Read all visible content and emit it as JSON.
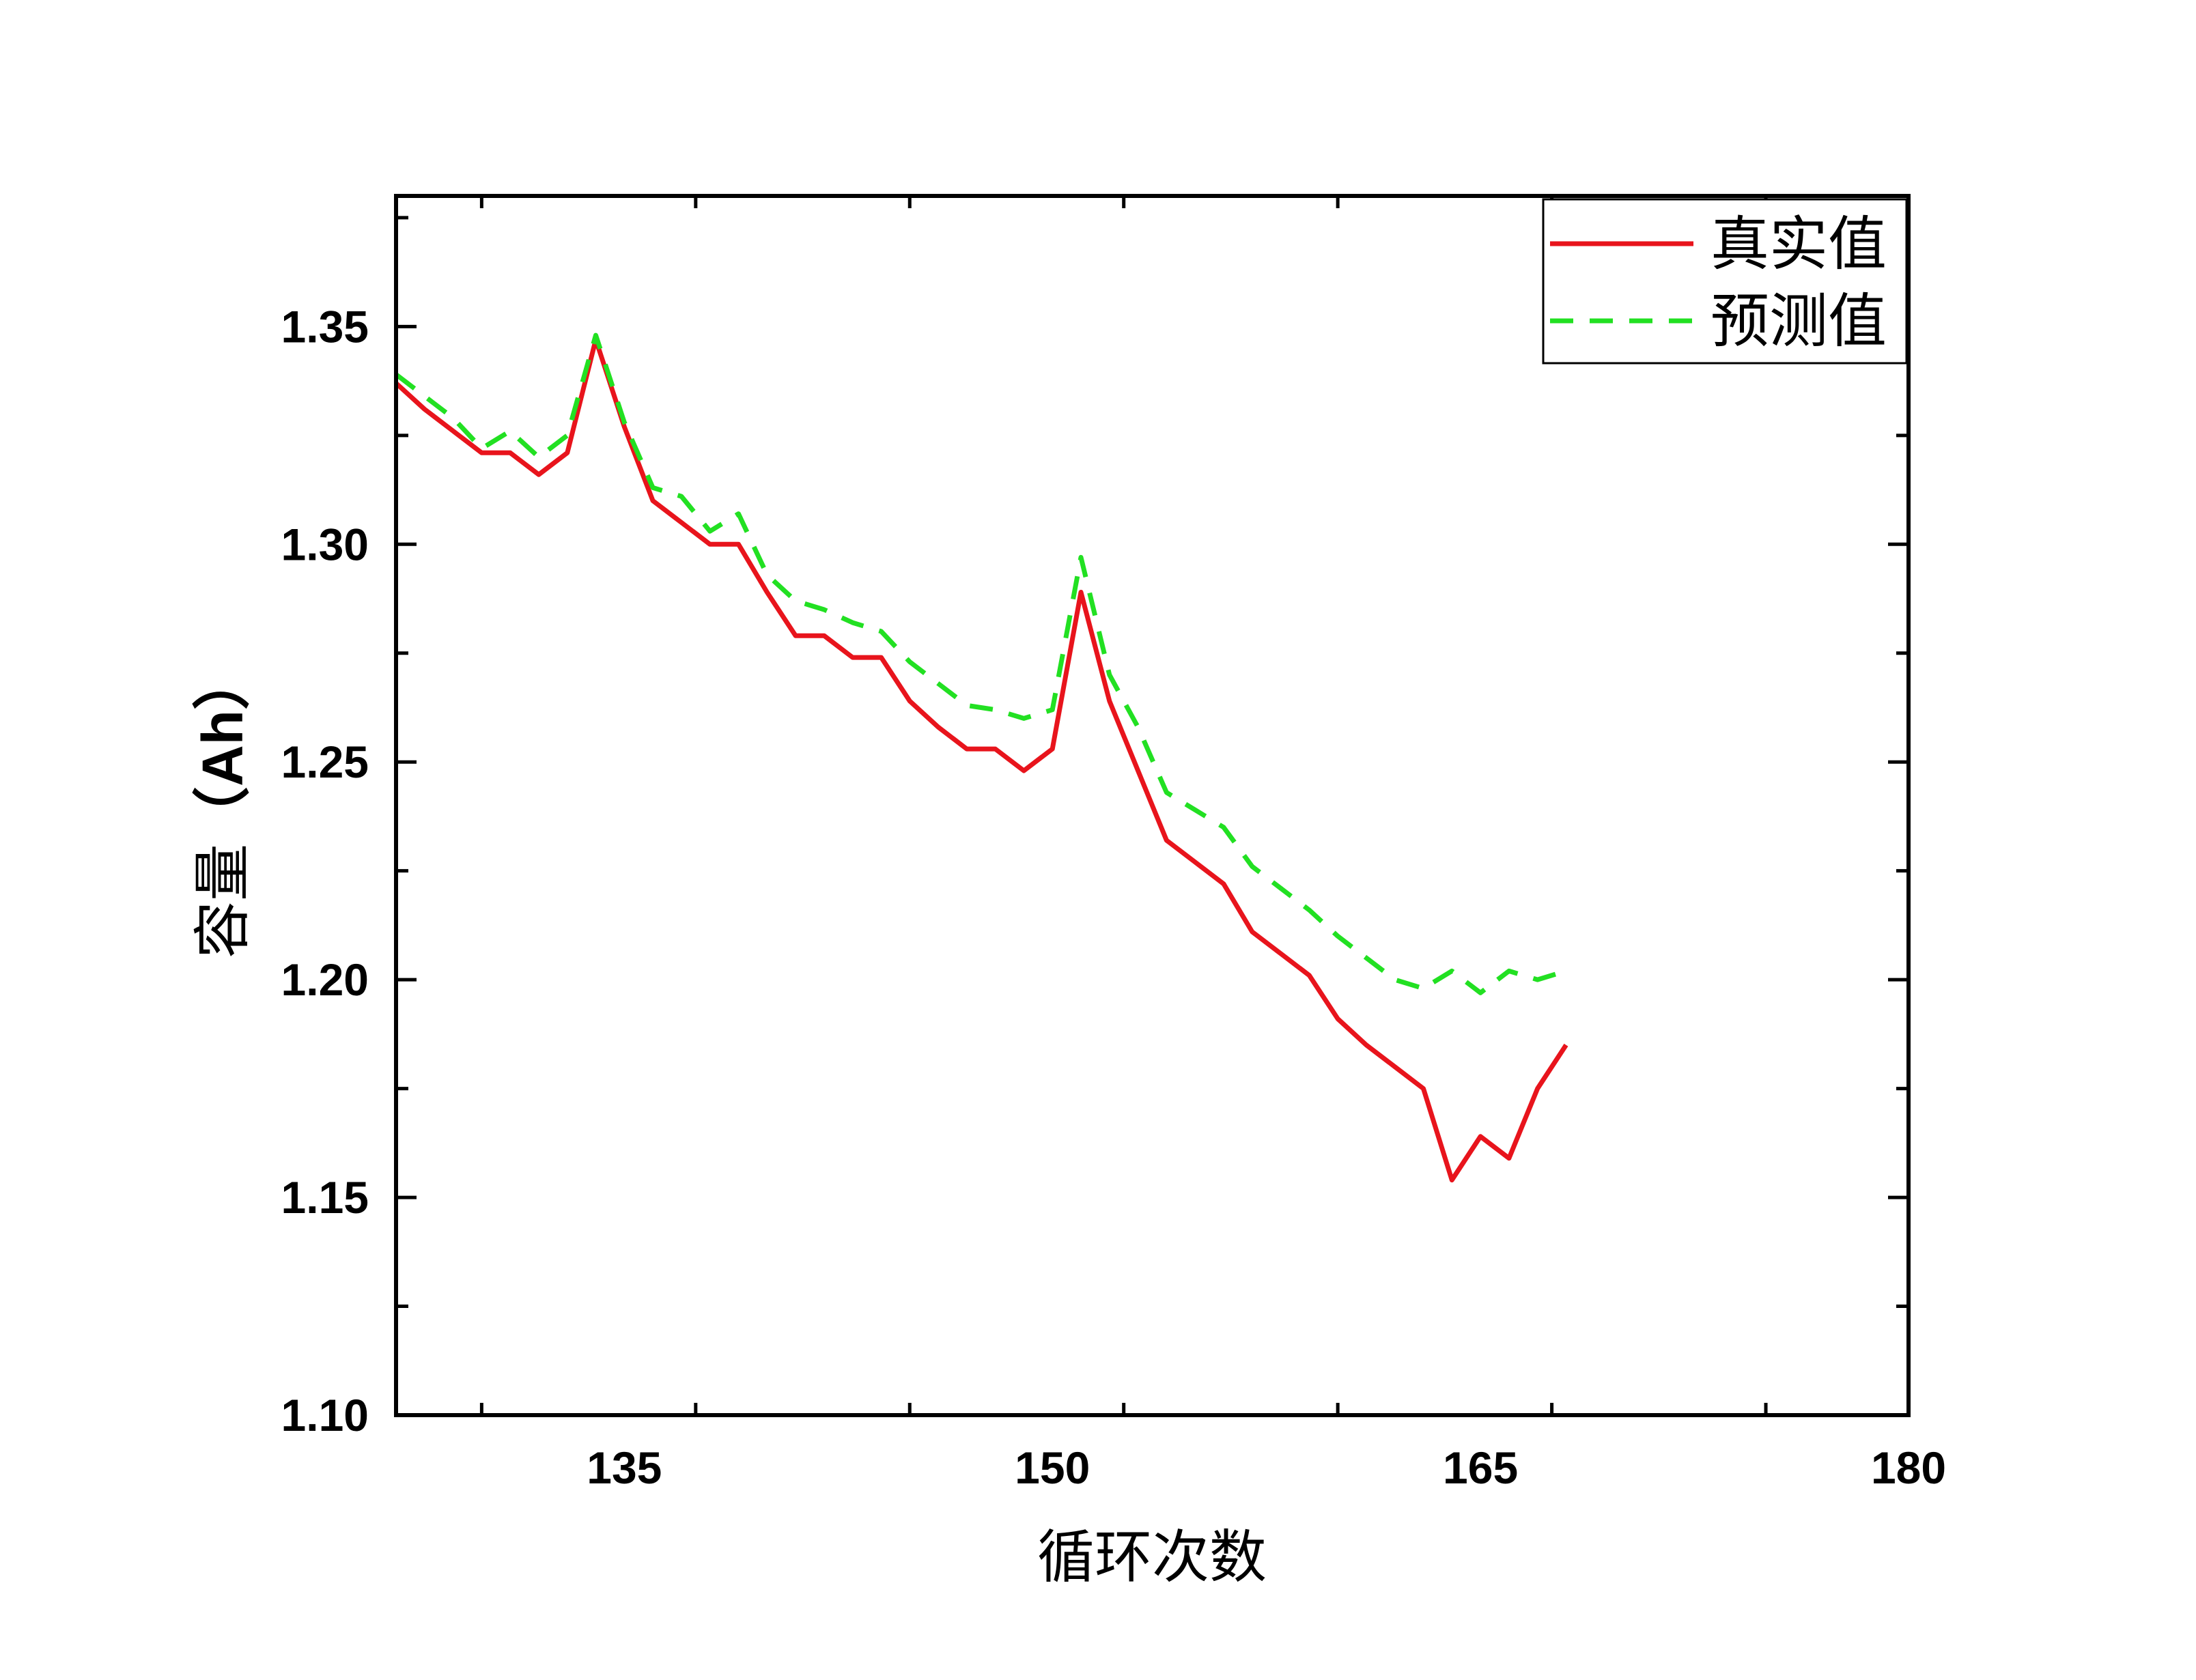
{
  "chart_data": {
    "type": "line",
    "xlabel": "循环次数",
    "ylabel_cjk": "容量",
    "ylabel_unit": "（Ah）",
    "xlim": [
      127,
      180
    ],
    "ylim": [
      1.1,
      1.38
    ],
    "xticks": [
      135,
      150,
      165,
      180
    ],
    "xtick_labels": [
      "135",
      "150",
      "165",
      "180"
    ],
    "yticks": [
      1.1,
      1.15,
      1.2,
      1.25,
      1.3,
      1.35
    ],
    "ytick_labels": [
      "1.10",
      "1.15",
      "1.20",
      "1.25",
      "1.30",
      "1.35"
    ],
    "legend_position": "top-right",
    "grid": false,
    "series": [
      {
        "name": "真实值",
        "color": "#e8141c",
        "style": "solid",
        "x": [
          127,
          128,
          129,
          130,
          131,
          132,
          133,
          134,
          135,
          136,
          137,
          138,
          139,
          140,
          141,
          142,
          143,
          144,
          145,
          146,
          147,
          148,
          149,
          150,
          151,
          152,
          153,
          154,
          155,
          156,
          157,
          158,
          159,
          160,
          161,
          162,
          163,
          164,
          165,
          166,
          167,
          168
        ],
        "y": [
          1.337,
          1.331,
          1.326,
          1.321,
          1.321,
          1.316,
          1.321,
          1.347,
          1.327,
          1.31,
          1.305,
          1.3,
          1.3,
          1.289,
          1.279,
          1.279,
          1.274,
          1.274,
          1.264,
          1.258,
          1.253,
          1.253,
          1.248,
          1.253,
          1.289,
          1.264,
          1.248,
          1.232,
          1.227,
          1.222,
          1.211,
          1.206,
          1.201,
          1.191,
          1.185,
          1.18,
          1.175,
          1.154,
          1.164,
          1.159,
          1.175,
          1.185
        ]
      },
      {
        "name": "预测值",
        "color": "#22e022",
        "style": "dashed",
        "x": [
          127,
          128,
          129,
          130,
          131,
          132,
          133,
          134,
          135,
          136,
          137,
          138,
          139,
          140,
          141,
          142,
          143,
          144,
          145,
          146,
          147,
          148,
          149,
          150,
          151,
          152,
          153,
          154,
          155,
          156,
          157,
          158,
          159,
          160,
          161,
          162,
          163,
          164,
          165,
          166,
          167,
          168
        ],
        "y": [
          1.339,
          1.334,
          1.329,
          1.322,
          1.326,
          1.32,
          1.325,
          1.348,
          1.328,
          1.313,
          1.311,
          1.303,
          1.307,
          1.293,
          1.287,
          1.285,
          1.282,
          1.28,
          1.273,
          1.268,
          1.263,
          1.262,
          1.26,
          1.262,
          1.297,
          1.27,
          1.258,
          1.243,
          1.239,
          1.235,
          1.226,
          1.221,
          1.216,
          1.21,
          1.205,
          1.2,
          1.198,
          1.202,
          1.197,
          1.202,
          1.2,
          1.202
        ]
      }
    ]
  }
}
